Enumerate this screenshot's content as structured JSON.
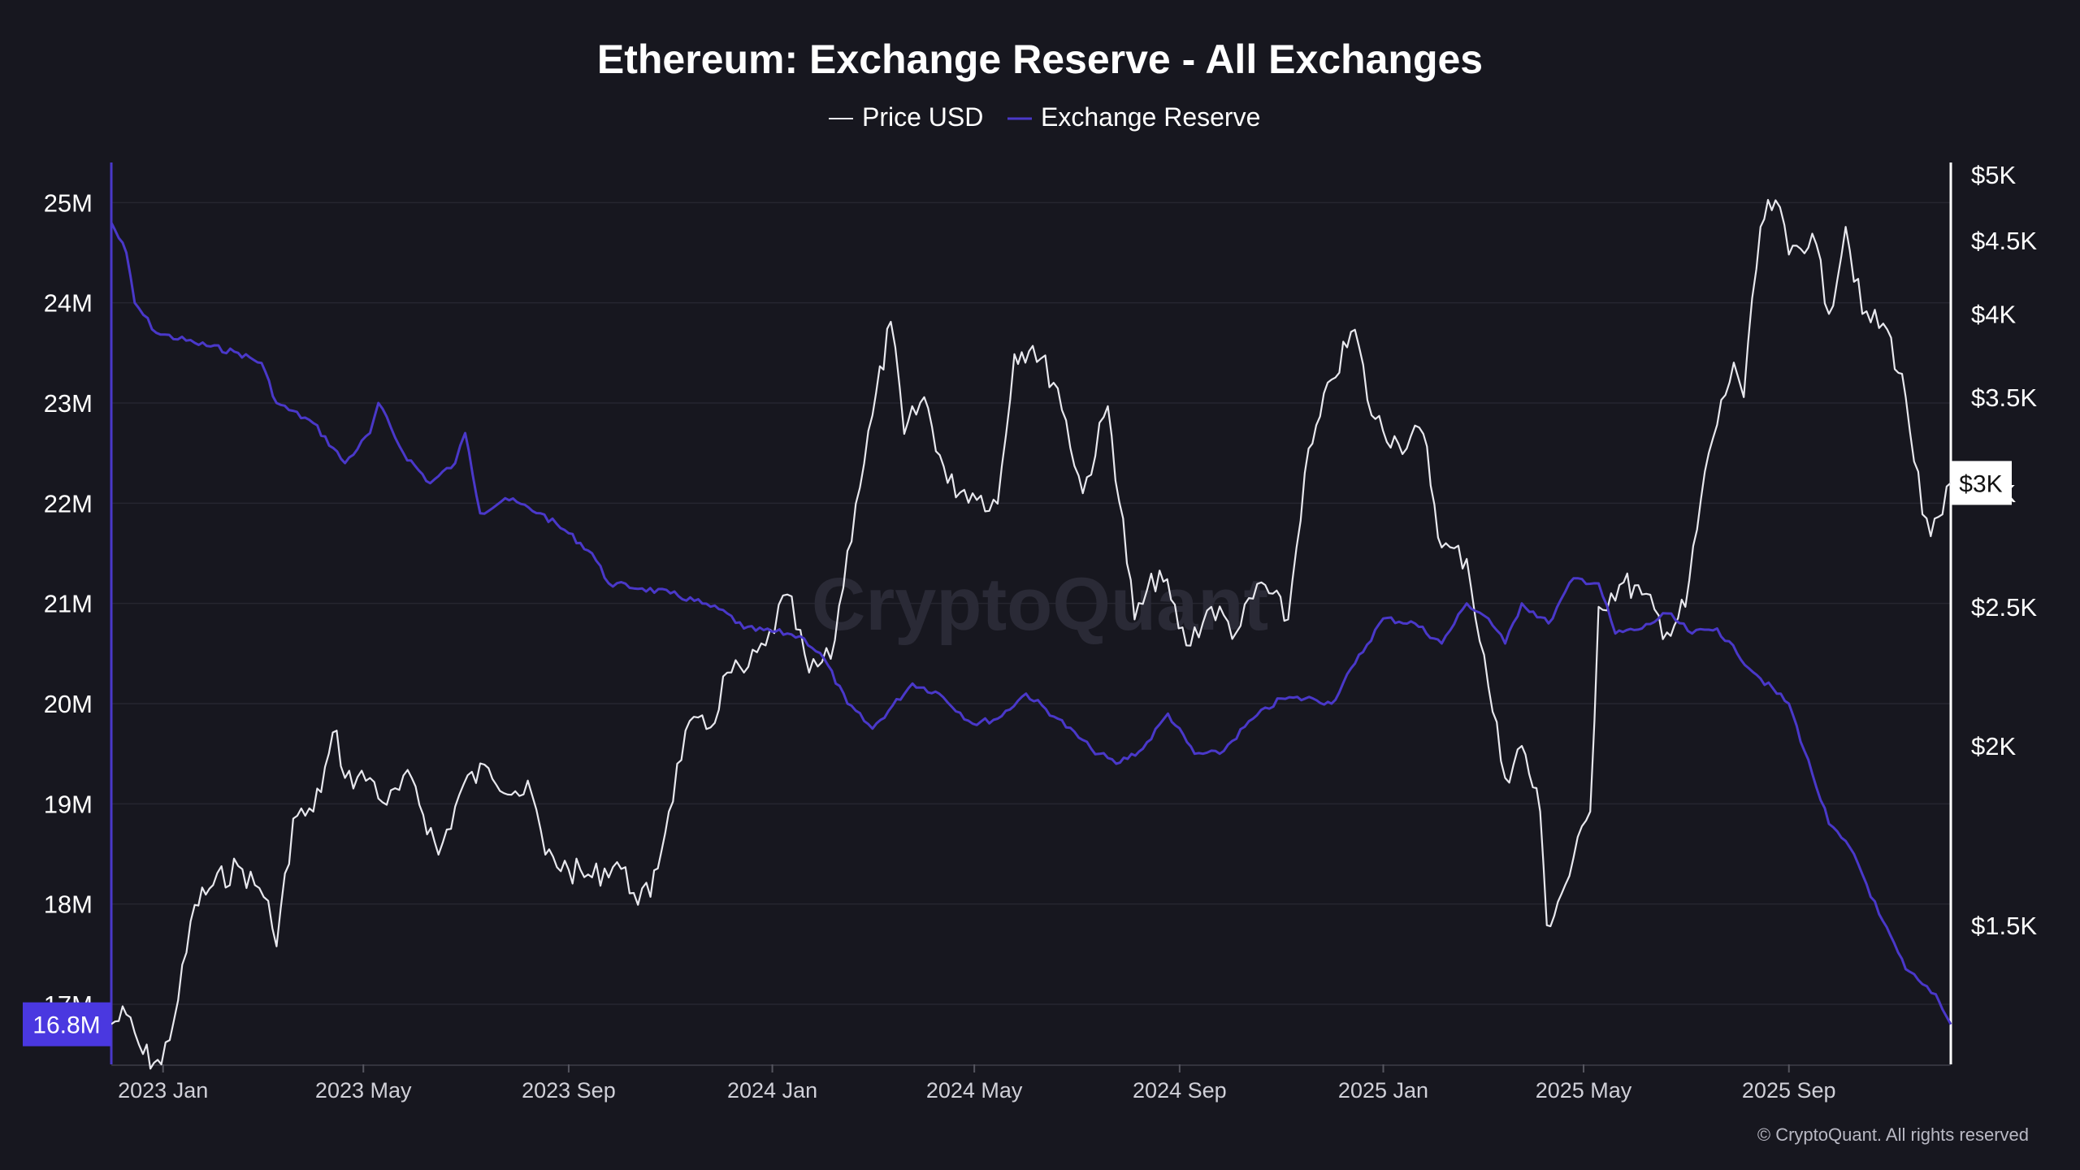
{
  "colors": {
    "background": "#17171f",
    "grid": "#262630",
    "price": "#e8e8ee",
    "reserve": "#4a38c9",
    "reserve_badge": "#4a38e0",
    "text": "#ffffff"
  },
  "watermark": "CryptoQuant",
  "footer": "© CryptoQuant. All rights reserved",
  "chart_data": {
    "type": "line",
    "title": "Ethereum: Exchange Reserve - All Exchanges",
    "legend": [
      "Price USD",
      "Exchange Reserve"
    ],
    "legend_position": "top-center",
    "grid": true,
    "x_ticks": [
      "2023 Jan",
      "2023 May",
      "2023 Sep",
      "2024 Jan",
      "2024 May",
      "2024 Sep",
      "2025 Jan",
      "2025 May",
      "2025 Sep"
    ],
    "x_range": [
      "2022-12-01",
      "2025-12-07"
    ],
    "y_left": {
      "series": "Exchange Reserve",
      "ticks": [
        "25M",
        "24M",
        "23M",
        "22M",
        "21M",
        "20M",
        "19M",
        "18M",
        "17M"
      ],
      "range": [
        16.4,
        25.4
      ],
      "unit": "M ETH",
      "current_label": "16.8M"
    },
    "y_right": {
      "series": "Price USD",
      "scale": "log",
      "ticks": [
        "$5K",
        "$4.5K",
        "$4K",
        "$3.5K",
        "$3K",
        "$2.5K",
        "$2K",
        "$1.5K"
      ],
      "tick_values": [
        5000,
        4500,
        4000,
        3500,
        3000,
        2500,
        2000,
        1500
      ],
      "range": [
        1200,
        5100
      ],
      "current_label": "$3K"
    },
    "series": [
      {
        "name": "Exchange Reserve",
        "axis": "left",
        "points": [
          [
            "2022-12-01",
            24.8
          ],
          [
            "2022-12-10",
            24.5
          ],
          [
            "2022-12-15",
            24.0
          ],
          [
            "2022-12-28",
            23.7
          ],
          [
            "2023-01-20",
            23.6
          ],
          [
            "2023-02-15",
            23.5
          ],
          [
            "2023-03-01",
            23.4
          ],
          [
            "2023-03-10",
            23.0
          ],
          [
            "2023-04-01",
            22.8
          ],
          [
            "2023-04-20",
            22.4
          ],
          [
            "2023-05-05",
            22.7
          ],
          [
            "2023-05-10",
            23.0
          ],
          [
            "2023-05-25",
            22.5
          ],
          [
            "2023-06-10",
            22.2
          ],
          [
            "2023-06-25",
            22.4
          ],
          [
            "2023-07-01",
            22.7
          ],
          [
            "2023-07-10",
            21.9
          ],
          [
            "2023-07-25",
            22.05
          ],
          [
            "2023-08-15",
            21.9
          ],
          [
            "2023-09-01",
            21.7
          ],
          [
            "2023-09-15",
            21.5
          ],
          [
            "2023-09-25",
            21.2
          ],
          [
            "2023-10-15",
            21.15
          ],
          [
            "2023-11-01",
            21.1
          ],
          [
            "2023-11-20",
            21.0
          ],
          [
            "2023-12-05",
            20.9
          ],
          [
            "2023-12-15",
            20.75
          ],
          [
            "2024-01-10",
            20.7
          ],
          [
            "2024-01-20",
            20.65
          ],
          [
            "2024-02-01",
            20.45
          ],
          [
            "2024-02-15",
            20.0
          ],
          [
            "2024-03-01",
            19.75
          ],
          [
            "2024-03-25",
            20.2
          ],
          [
            "2024-04-10",
            20.1
          ],
          [
            "2024-04-30",
            19.8
          ],
          [
            "2024-05-15",
            19.85
          ],
          [
            "2024-06-01",
            20.1
          ],
          [
            "2024-06-20",
            19.85
          ],
          [
            "2024-07-10",
            19.55
          ],
          [
            "2024-07-25",
            19.4
          ],
          [
            "2024-08-10",
            19.55
          ],
          [
            "2024-08-25",
            19.9
          ],
          [
            "2024-09-10",
            19.5
          ],
          [
            "2024-09-25",
            19.5
          ],
          [
            "2024-10-15",
            19.85
          ],
          [
            "2024-11-01",
            20.05
          ],
          [
            "2024-11-20",
            20.05
          ],
          [
            "2024-12-01",
            20.0
          ],
          [
            "2024-12-15",
            20.4
          ],
          [
            "2025-01-01",
            20.85
          ],
          [
            "2025-01-20",
            20.8
          ],
          [
            "2025-02-05",
            20.6
          ],
          [
            "2025-02-20",
            21.0
          ],
          [
            "2025-03-05",
            20.85
          ],
          [
            "2025-03-15",
            20.6
          ],
          [
            "2025-03-25",
            21.0
          ],
          [
            "2025-04-10",
            20.8
          ],
          [
            "2025-04-25",
            21.25
          ],
          [
            "2025-05-10",
            21.2
          ],
          [
            "2025-05-20",
            20.7
          ],
          [
            "2025-06-05",
            20.75
          ],
          [
            "2025-06-20",
            20.9
          ],
          [
            "2025-07-05",
            20.7
          ],
          [
            "2025-07-20",
            20.75
          ],
          [
            "2025-08-01",
            20.5
          ],
          [
            "2025-08-15",
            20.25
          ],
          [
            "2025-09-01",
            20.0
          ],
          [
            "2025-09-15",
            19.3
          ],
          [
            "2025-09-25",
            18.8
          ],
          [
            "2025-10-10",
            18.5
          ],
          [
            "2025-10-25",
            17.9
          ],
          [
            "2025-11-10",
            17.35
          ],
          [
            "2025-11-20",
            17.2
          ],
          [
            "2025-11-28",
            17.1
          ],
          [
            "2025-12-02",
            16.95
          ],
          [
            "2025-12-07",
            16.8
          ]
        ]
      },
      {
        "name": "Price USD",
        "axis": "right",
        "points": [
          [
            "2022-12-01",
            1280
          ],
          [
            "2022-12-10",
            1300
          ],
          [
            "2022-12-20",
            1220
          ],
          [
            "2022-12-31",
            1200
          ],
          [
            "2023-01-10",
            1330
          ],
          [
            "2023-01-20",
            1550
          ],
          [
            "2023-01-31",
            1600
          ],
          [
            "2023-02-15",
            1650
          ],
          [
            "2023-02-25",
            1600
          ],
          [
            "2023-03-05",
            1560
          ],
          [
            "2023-03-10",
            1450
          ],
          [
            "2023-03-20",
            1780
          ],
          [
            "2023-04-01",
            1800
          ],
          [
            "2023-04-15",
            2050
          ],
          [
            "2023-04-20",
            1900
          ],
          [
            "2023-05-05",
            1900
          ],
          [
            "2023-05-15",
            1820
          ],
          [
            "2023-05-30",
            1900
          ],
          [
            "2023-06-15",
            1680
          ],
          [
            "2023-06-30",
            1880
          ],
          [
            "2023-07-15",
            1930
          ],
          [
            "2023-07-31",
            1860
          ],
          [
            "2023-08-10",
            1850
          ],
          [
            "2023-08-18",
            1680
          ],
          [
            "2023-09-01",
            1640
          ],
          [
            "2023-09-15",
            1620
          ],
          [
            "2023-09-30",
            1660
          ],
          [
            "2023-10-10",
            1580
          ],
          [
            "2023-10-20",
            1570
          ],
          [
            "2023-10-31",
            1800
          ],
          [
            "2023-11-10",
            2050
          ],
          [
            "2023-11-25",
            2060
          ],
          [
            "2023-12-05",
            2250
          ],
          [
            "2023-12-15",
            2250
          ],
          [
            "2023-12-28",
            2350
          ],
          [
            "2024-01-10",
            2550
          ],
          [
            "2024-01-23",
            2250
          ],
          [
            "2024-02-05",
            2300
          ],
          [
            "2024-02-20",
            2950
          ],
          [
            "2024-03-01",
            3400
          ],
          [
            "2024-03-12",
            3950
          ],
          [
            "2024-03-20",
            3300
          ],
          [
            "2024-04-01",
            3500
          ],
          [
            "2024-04-15",
            3050
          ],
          [
            "2024-04-30",
            3000
          ],
          [
            "2024-05-15",
            2950
          ],
          [
            "2024-05-25",
            3750
          ],
          [
            "2024-06-05",
            3800
          ],
          [
            "2024-06-20",
            3550
          ],
          [
            "2024-07-05",
            3000
          ],
          [
            "2024-07-20",
            3450
          ],
          [
            "2024-08-05",
            2450
          ],
          [
            "2024-08-20",
            2650
          ],
          [
            "2024-09-05",
            2350
          ],
          [
            "2024-09-20",
            2500
          ],
          [
            "2024-10-05",
            2400
          ],
          [
            "2024-10-20",
            2600
          ],
          [
            "2024-11-05",
            2450
          ],
          [
            "2024-11-15",
            3100
          ],
          [
            "2024-12-01",
            3600
          ],
          [
            "2024-12-15",
            3900
          ],
          [
            "2024-12-25",
            3400
          ],
          [
            "2025-01-10",
            3250
          ],
          [
            "2025-01-25",
            3300
          ],
          [
            "2025-02-05",
            2750
          ],
          [
            "2025-02-20",
            2700
          ],
          [
            "2025-03-05",
            2200
          ],
          [
            "2025-03-15",
            1900
          ],
          [
            "2025-03-25",
            2000
          ],
          [
            "2025-04-05",
            1800
          ],
          [
            "2025-04-09",
            1500
          ],
          [
            "2025-04-20",
            1600
          ],
          [
            "2025-05-05",
            1800
          ],
          [
            "2025-05-10",
            2500
          ],
          [
            "2025-05-25",
            2600
          ],
          [
            "2025-06-05",
            2550
          ],
          [
            "2025-06-20",
            2400
          ],
          [
            "2025-07-01",
            2500
          ],
          [
            "2025-07-15",
            3200
          ],
          [
            "2025-07-30",
            3700
          ],
          [
            "2025-08-05",
            3500
          ],
          [
            "2025-08-15",
            4600
          ],
          [
            "2025-08-24",
            4800
          ],
          [
            "2025-09-01",
            4400
          ],
          [
            "2025-09-15",
            4550
          ],
          [
            "2025-09-25",
            4000
          ],
          [
            "2025-10-05",
            4600
          ],
          [
            "2025-10-15",
            4000
          ],
          [
            "2025-10-30",
            3900
          ],
          [
            "2025-11-10",
            3500
          ],
          [
            "2025-11-20",
            2900
          ],
          [
            "2025-11-25",
            2800
          ],
          [
            "2025-12-02",
            2900
          ],
          [
            "2025-12-07",
            3050
          ]
        ]
      }
    ]
  }
}
